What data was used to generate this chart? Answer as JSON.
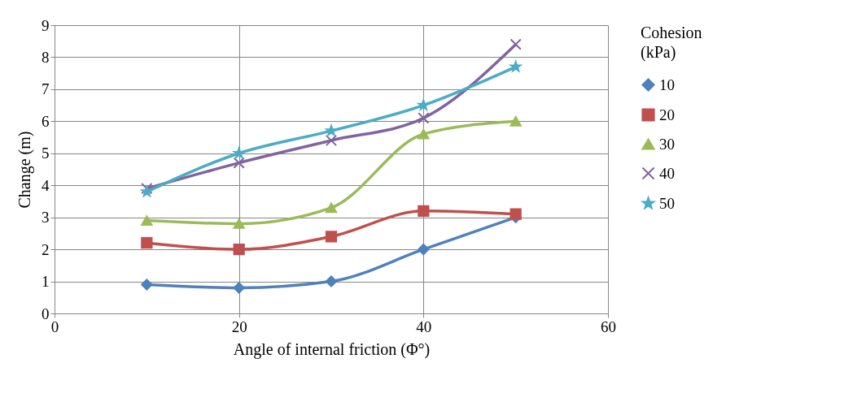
{
  "chart_data": {
    "type": "line",
    "xlabel": "Angle  of internal  friction  (Φ°)",
    "ylabel": "Change  (m)",
    "legend_title": "Cohesion (kPa)",
    "x": [
      10,
      20,
      30,
      40,
      50
    ],
    "xlim": [
      0,
      60
    ],
    "xticks": [
      0,
      20,
      40,
      60
    ],
    "ylim": [
      0,
      9
    ],
    "yticks": [
      0,
      1,
      2,
      3,
      4,
      5,
      6,
      7,
      8,
      9
    ],
    "grid": true,
    "legend": "right",
    "line_style": "solid",
    "series": [
      {
        "name": "10",
        "color": "#4f81bd",
        "marker": "diamond",
        "values": [
          0.9,
          0.8,
          1.0,
          2.0,
          3.0
        ]
      },
      {
        "name": "20",
        "color": "#c0504d",
        "marker": "square",
        "values": [
          2.2,
          2.0,
          2.4,
          3.2,
          3.1
        ]
      },
      {
        "name": "30",
        "color": "#9bbb59",
        "marker": "triangle",
        "values": [
          2.9,
          2.8,
          3.3,
          5.6,
          6.0
        ]
      },
      {
        "name": "40",
        "color": "#8064a2",
        "marker": "cross",
        "values": [
          3.9,
          4.7,
          5.4,
          6.1,
          8.4
        ]
      },
      {
        "name": "50",
        "color": "#4bacc6",
        "marker": "star",
        "values": [
          3.8,
          5.0,
          5.7,
          6.5,
          7.7
        ]
      }
    ]
  }
}
